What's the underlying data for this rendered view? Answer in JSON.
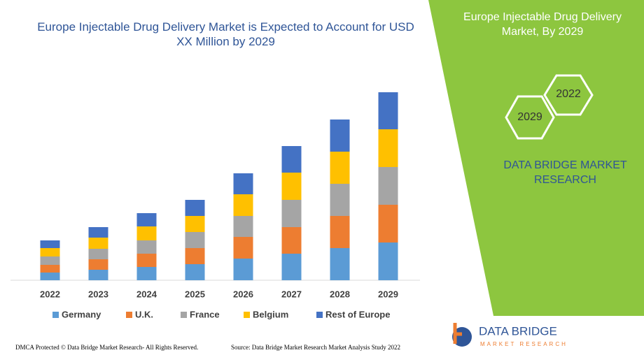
{
  "chart_data": {
    "type": "stacked-bar",
    "title": "Europe Injectable Drug Delivery Market is Expected to Account for USD XX Million by 2029",
    "categories": [
      "2022",
      "2023",
      "2024",
      "2025",
      "2026",
      "2027",
      "2028",
      "2029"
    ],
    "series": [
      {
        "name": "Germany",
        "color": "#5b9bd5",
        "values": [
          11,
          15,
          19,
          23,
          31,
          38,
          46,
          54
        ]
      },
      {
        "name": "U.K.",
        "color": "#ed7d31",
        "values": [
          11,
          15,
          19,
          23,
          31,
          38,
          46,
          54
        ]
      },
      {
        "name": "France",
        "color": "#a5a5a5",
        "values": [
          12,
          15,
          19,
          23,
          30,
          39,
          46,
          54
        ]
      },
      {
        "name": "Belgium",
        "color": "#ffc000",
        "values": [
          12,
          16,
          20,
          23,
          31,
          39,
          46,
          54
        ]
      },
      {
        "name": "Rest of Europe",
        "color": "#4472c4",
        "values": [
          11,
          15,
          19,
          23,
          30,
          38,
          46,
          53
        ]
      }
    ],
    "ylim": [
      0,
      300
    ]
  },
  "side_panel": {
    "title": "Europe Injectable Drug Delivery Market, By 2029",
    "hex_labels": [
      "2029",
      "2022"
    ],
    "brand": "DATA BRIDGE MARKET RESEARCH"
  },
  "logo": {
    "name": "DATA BRIDGE",
    "tagline": "MARKET RESEARCH"
  },
  "footer": {
    "left": "DMCA Protected © Data Bridge Market Research- All Rights Reserved.",
    "right": "Source: Data Bridge Market Research Market Analysis Study 2022"
  }
}
